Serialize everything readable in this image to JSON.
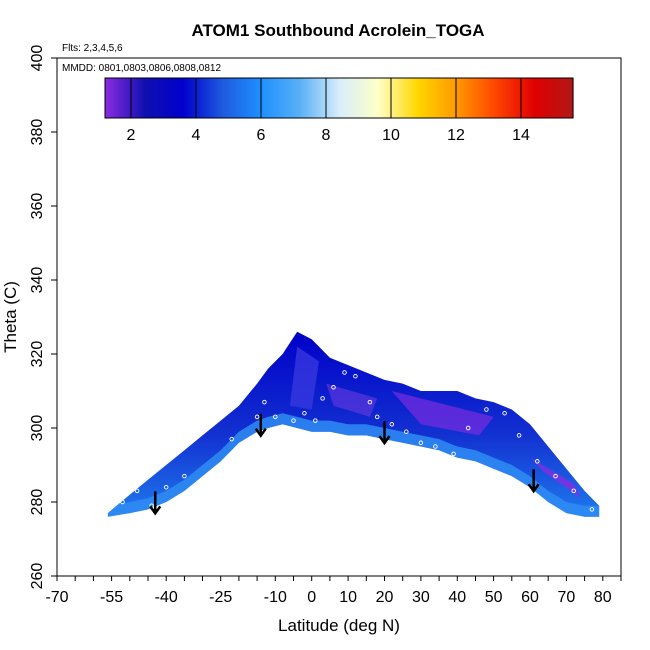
{
  "chart_data": {
    "type": "heatmap",
    "title": "ATOM1 Southbound Acrolein_TOGA",
    "flights_note": "Flts: 2,3,4,5,6",
    "dates_note": "MMDD: 0801,0803,0806,0808,0812",
    "xlabel": "Latitude (deg N)",
    "ylabel": "Theta (C)",
    "xlim": [
      -70,
      85
    ],
    "ylim": [
      260,
      400
    ],
    "x_tick_labels": [
      "-70",
      "-55",
      "-40",
      "-25",
      "-10",
      "0",
      "10",
      "20",
      "30",
      "40",
      "50",
      "60",
      "70",
      "80"
    ],
    "y_tick_labels": [
      "260",
      "280",
      "300",
      "320",
      "340",
      "360",
      "380",
      "400"
    ],
    "colorbar": {
      "range": [
        1.2,
        15.6
      ],
      "tick_labels": [
        "2",
        "4",
        "6",
        "8",
        "10",
        "12",
        "14"
      ],
      "colors": [
        "#8b2be2",
        "#1010b0",
        "#0000cd",
        "#1e5adf",
        "#1e90ff",
        "#5ab0f5",
        "#d8eefc",
        "#ffffc8",
        "#ffd700",
        "#ff9900",
        "#ff4500",
        "#e00000",
        "#b01818"
      ]
    },
    "arrow_latitudes": [
      -43,
      -14,
      20,
      61
    ],
    "ridge_profile": {
      "latitude": [
        -56,
        -50,
        -45,
        -40,
        -35,
        -30,
        -25,
        -20,
        -15,
        -12,
        -8,
        -4,
        0,
        5,
        10,
        15,
        20,
        25,
        30,
        35,
        40,
        45,
        50,
        55,
        60,
        65,
        70,
        75,
        79
      ],
      "theta_top": [
        277,
        282,
        286,
        290,
        294,
        298,
        302,
        306,
        312,
        316,
        320,
        326,
        324,
        319,
        317,
        315,
        313,
        312,
        310,
        310,
        310,
        308,
        307,
        305,
        301,
        295,
        289,
        283,
        279
      ],
      "theta_bottom": [
        276,
        277,
        278,
        280,
        283,
        287,
        291,
        296,
        299,
        300,
        301,
        300,
        299,
        299,
        298,
        298,
        297,
        296,
        295,
        294,
        292,
        291,
        289,
        287,
        284,
        280,
        277,
        276,
        276
      ]
    },
    "sample_points": [
      [
        -55,
        282
      ],
      [
        -52,
        280
      ],
      [
        -48,
        283
      ],
      [
        -44,
        279
      ],
      [
        -40,
        284
      ],
      [
        -35,
        287
      ],
      [
        -22,
        297
      ],
      [
        -15,
        303
      ],
      [
        -13,
        307
      ],
      [
        -10,
        303
      ],
      [
        -5,
        302
      ],
      [
        -2,
        304
      ],
      [
        1,
        302
      ],
      [
        3,
        308
      ],
      [
        6,
        311
      ],
      [
        9,
        315
      ],
      [
        12,
        314
      ],
      [
        14,
        318
      ],
      [
        16,
        307
      ],
      [
        18,
        303
      ],
      [
        22,
        301
      ],
      [
        26,
        299
      ],
      [
        30,
        296
      ],
      [
        34,
        295
      ],
      [
        39,
        293
      ],
      [
        43,
        300
      ],
      [
        48,
        305
      ],
      [
        53,
        304
      ],
      [
        57,
        298
      ],
      [
        62,
        291
      ],
      [
        67,
        287
      ],
      [
        72,
        283
      ],
      [
        77,
        278
      ]
    ]
  }
}
